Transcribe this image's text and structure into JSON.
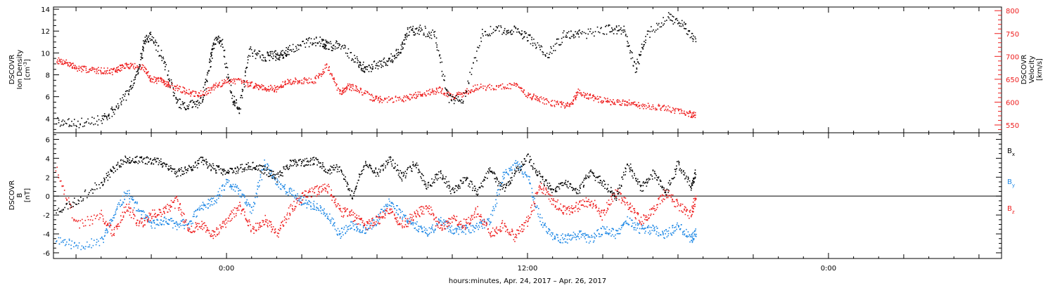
{
  "chart_data": [
    {
      "type": "scatter",
      "xaxis": {
        "label": "hours:minutes, Apr. 24, 2017 – Apr. 26, 2017",
        "tick_labels": [
          {
            "hours": 0,
            "label": "0:00"
          },
          {
            "hours": 12,
            "label": "12:00"
          },
          {
            "hours": 24,
            "label": "0:00"
          }
        ],
        "range_hours": [
          -6.9,
          30.9
        ]
      },
      "ylabel_left": "DSCOVR\nIon Density\n[cm^-3]",
      "ylabel_right": "DSCOVR\nVelocity\n[km/s]",
      "ylim_left": [
        2.7,
        14.2
      ],
      "ylim_right": [
        533,
        808
      ],
      "yticks_left": [
        4,
        6,
        8,
        10,
        12,
        14
      ],
      "yticks_right": [
        550,
        600,
        650,
        700,
        750,
        800
      ],
      "grid": false,
      "series": [
        {
          "name": "Ion Density",
          "color": "#000000",
          "axis": "left",
          "x": [
            -6.8,
            -6.0,
            -5.0,
            -4.5,
            -3.9,
            -3.5,
            -3.3,
            -3.0,
            -2.5,
            -2.0,
            -1.5,
            -1.0,
            -0.7,
            -0.5,
            -0.2,
            0.2,
            0.5,
            0.9,
            1.5,
            1.9,
            2.2,
            2.5,
            3.2,
            3.8,
            4.0,
            4.5,
            5.2,
            5.5,
            6.0,
            6.5,
            6.9,
            7.2,
            7.7,
            8.3,
            8.8,
            9.4,
            10.2,
            11.0,
            11.6,
            12.1,
            12.8,
            13.5,
            14.1,
            15.2,
            15.8,
            16.3,
            16.7,
            17.6,
            18.2,
            18.7
          ],
          "values": [
            3.8,
            3.6,
            3.9,
            4.8,
            6.5,
            8.6,
            11.2,
            11.6,
            9.2,
            5.5,
            5.2,
            5.6,
            8.9,
            11.3,
            11.1,
            5.9,
            4.9,
            10.2,
            9.7,
            9.8,
            9.9,
            10.3,
            11.0,
            11.1,
            10.6,
            10.8,
            9.2,
            8.6,
            9.0,
            9.4,
            10.2,
            12.0,
            12.2,
            11.7,
            6.0,
            5.5,
            11.9,
            12.2,
            12.1,
            11.3,
            9.9,
            11.8,
            11.7,
            12.2,
            12.1,
            8.6,
            11.6,
            13.4,
            12.6,
            11.2
          ]
        },
        {
          "name": "Velocity",
          "color": "#ee1c1c",
          "axis": "right",
          "x": [
            -6.8,
            -6.4,
            -6.0,
            -5.5,
            -5.0,
            -4.5,
            -4.2,
            -3.8,
            -3.3,
            -3.0,
            -2.6,
            -2.3,
            -1.8,
            -1.3,
            -0.8,
            -0.3,
            0.2,
            0.8,
            1.2,
            1.6,
            2.0,
            2.4,
            2.9,
            3.5,
            4.0,
            4.5,
            4.8,
            5.2,
            5.8,
            6.2,
            7.0,
            7.5,
            8.0,
            8.5,
            9.0,
            9.5,
            10.0,
            10.8,
            11.5,
            12.0,
            12.5,
            13.2,
            13.7,
            14.0,
            14.5,
            15.0,
            15.5,
            16.0,
            16.5,
            17.2,
            17.8,
            18.4,
            18.7
          ],
          "values": [
            692,
            688,
            675,
            672,
            670,
            668,
            678,
            682,
            675,
            650,
            648,
            638,
            628,
            618,
            624,
            640,
            650,
            642,
            636,
            632,
            630,
            645,
            648,
            648,
            680,
            620,
            636,
            630,
            610,
            606,
            608,
            616,
            622,
            628,
            612,
            622,
            634,
            634,
            638,
            616,
            606,
            596,
            594,
            624,
            612,
            604,
            600,
            600,
            594,
            590,
            584,
            576,
            572
          ]
        }
      ]
    },
    {
      "type": "scatter",
      "xaxis": {
        "label": "hours:minutes, Apr. 24, 2017 – Apr. 26, 2017",
        "tick_labels": [
          {
            "hours": 0,
            "label": "0:00"
          },
          {
            "hours": 12,
            "label": "12:00"
          },
          {
            "hours": 24,
            "label": "0:00"
          }
        ],
        "range_hours": [
          -6.9,
          30.9
        ]
      },
      "ylabel": "DSCOVR\nB\n[nT]",
      "ylim": [
        -6.6,
        6.7
      ],
      "yticks": [
        -6,
        -4,
        -2,
        0,
        2,
        4,
        6
      ],
      "zero_line": true,
      "grid": false,
      "legend": "right",
      "legend_labels": [
        {
          "base": "B",
          "sub": "x"
        },
        {
          "base": "B",
          "sub": "y"
        },
        {
          "base": "B",
          "sub": "z"
        }
      ],
      "series": [
        {
          "name": "Bx",
          "color": "#000000",
          "x": [
            -6.8,
            -6.0,
            -5.0,
            -4.5,
            -4.0,
            -3.5,
            -3.0,
            -2.5,
            -2.0,
            -1.5,
            -1.0,
            -0.5,
            0.0,
            0.5,
            1.0,
            1.5,
            2.0,
            2.5,
            3.0,
            3.5,
            4.0,
            4.5,
            5.0,
            5.5,
            6.0,
            6.5,
            7.0,
            7.5,
            8.0,
            8.5,
            9.0,
            9.5,
            10.0,
            10.5,
            11.0,
            11.5,
            12.0,
            12.5,
            13.0,
            13.5,
            14.0,
            14.5,
            15.0,
            15.5,
            16.0,
            16.5,
            17.0,
            17.5,
            18.0,
            18.5,
            18.7
          ],
          "values": [
            -1.5,
            -0.5,
            1.5,
            3.0,
            4.0,
            3.8,
            3.9,
            3.5,
            2.5,
            3.0,
            3.8,
            3.0,
            2.5,
            3.0,
            3.2,
            2.8,
            2.0,
            3.5,
            3.5,
            3.8,
            2.8,
            3.0,
            0.0,
            3.5,
            2.5,
            4.0,
            2.0,
            3.5,
            1.0,
            2.5,
            0.5,
            2.0,
            0.5,
            2.8,
            0.8,
            2.5,
            4.2,
            2.0,
            0.5,
            1.5,
            0.5,
            2.5,
            1.5,
            0.0,
            3.5,
            0.8,
            2.5,
            0.5,
            3.5,
            1.0,
            2.5
          ]
        },
        {
          "name": "By",
          "color": "#1e88e5",
          "x": [
            -6.8,
            -6.0,
            -5.0,
            -4.5,
            -4.0,
            -3.5,
            -3.0,
            -2.5,
            -2.0,
            -1.5,
            -1.0,
            -0.5,
            0.0,
            0.5,
            1.0,
            1.5,
            2.0,
            2.5,
            3.0,
            3.5,
            4.0,
            4.5,
            5.0,
            5.5,
            6.0,
            6.5,
            7.0,
            7.5,
            8.0,
            8.5,
            9.0,
            9.5,
            10.0,
            10.5,
            11.0,
            11.5,
            12.0,
            12.5,
            13.0,
            13.5,
            14.0,
            14.5,
            15.0,
            15.5,
            16.0,
            16.5,
            17.0,
            17.5,
            18.0,
            18.5,
            18.7
          ],
          "values": [
            -4.5,
            -5.2,
            -4.8,
            -2.0,
            0.5,
            -1.5,
            -3.0,
            -2.5,
            -3.0,
            -2.8,
            -1.0,
            -0.5,
            1.5,
            0.5,
            -1.5,
            3.5,
            1.5,
            0.5,
            -0.5,
            -1.0,
            -2.0,
            -4.0,
            -3.0,
            -3.5,
            -2.5,
            -0.5,
            -2.0,
            -3.0,
            -4.0,
            -2.5,
            -3.5,
            -3.5,
            -3.2,
            -2.5,
            2.0,
            3.5,
            2.0,
            -2.5,
            -4.2,
            -4.5,
            -4.0,
            -4.5,
            -3.5,
            -4.0,
            -2.5,
            -3.5,
            -3.5,
            -4.0,
            -3.0,
            -4.5,
            -3.8
          ]
        },
        {
          "name": "Bz",
          "color": "#ee1c1c",
          "x": [
            -6.8,
            -6.0,
            -5.0,
            -4.5,
            -4.0,
            -3.5,
            -3.0,
            -2.5,
            -2.0,
            -1.5,
            -1.0,
            -0.5,
            0.0,
            0.5,
            1.0,
            1.5,
            2.0,
            2.5,
            3.0,
            3.5,
            4.0,
            4.5,
            5.0,
            5.5,
            6.0,
            6.5,
            7.0,
            7.5,
            8.0,
            8.5,
            9.0,
            9.5,
            10.0,
            10.5,
            11.0,
            11.5,
            12.0,
            12.5,
            13.0,
            13.5,
            14.0,
            14.5,
            15.0,
            15.5,
            16.0,
            16.5,
            17.0,
            17.5,
            18.0,
            18.5,
            18.7
          ],
          "values": [
            3.0,
            -3.0,
            -2.0,
            -4.0,
            -1.0,
            -3.0,
            -2.0,
            -1.5,
            -0.5,
            -3.5,
            -3.0,
            -4.0,
            -2.5,
            -1.0,
            -3.5,
            -2.5,
            -4.0,
            -1.5,
            0.0,
            0.5,
            1.0,
            -1.5,
            -2.0,
            -3.0,
            -2.5,
            -1.5,
            -3.0,
            -2.0,
            -1.0,
            -3.5,
            -2.5,
            -3.0,
            -1.5,
            -4.0,
            -3.0,
            -4.2,
            -2.5,
            1.2,
            -0.5,
            -1.5,
            -1.0,
            -0.5,
            -2.0,
            0.5,
            -1.0,
            -2.5,
            -1.5,
            0.5,
            -1.0,
            -2.0,
            0.0
          ]
        }
      ]
    }
  ]
}
